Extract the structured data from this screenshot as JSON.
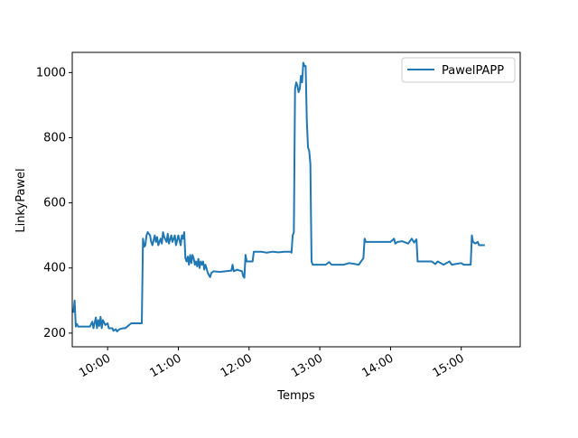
{
  "chart_data": {
    "type": "line",
    "xlabel": "Temps",
    "ylabel": "LinkyPawel",
    "xlim": [
      "09:30",
      "15:50"
    ],
    "ylim": [
      158,
      1062
    ],
    "x_ticks": [
      "10:00",
      "11:00",
      "12:00",
      "13:00",
      "14:00",
      "15:00"
    ],
    "y_ticks": [
      200,
      400,
      600,
      800,
      1000
    ],
    "legend_position": "upper right",
    "grid": false,
    "series": [
      {
        "name": "PawelPAPP",
        "color": "#1f77b4",
        "points": [
          [
            "09:30",
            270
          ],
          [
            "09:31",
            265
          ],
          [
            "09:32",
            300
          ],
          [
            "09:33",
            220
          ],
          [
            "09:34",
            228
          ],
          [
            "09:35",
            220
          ],
          [
            "09:40",
            220
          ],
          [
            "09:45",
            220
          ],
          [
            "09:47",
            235
          ],
          [
            "09:48",
            215
          ],
          [
            "09:50",
            248
          ],
          [
            "09:51",
            215
          ],
          [
            "09:52",
            240
          ],
          [
            "09:53",
            222
          ],
          [
            "09:54",
            250
          ],
          [
            "09:55",
            215
          ],
          [
            "09:56",
            240
          ],
          [
            "09:58",
            225
          ],
          [
            "10:00",
            230
          ],
          [
            "10:01",
            215
          ],
          [
            "10:04",
            215
          ],
          [
            "10:05",
            207
          ],
          [
            "10:07",
            212
          ],
          [
            "10:08",
            205
          ],
          [
            "10:10",
            212
          ],
          [
            "10:13",
            215
          ],
          [
            "10:15",
            215
          ],
          [
            "10:20",
            230
          ],
          [
            "10:25",
            230
          ],
          [
            "10:29",
            230
          ],
          [
            "10:30",
            490
          ],
          [
            "10:31",
            465
          ],
          [
            "10:32",
            470
          ],
          [
            "10:33",
            500
          ],
          [
            "10:34",
            510
          ],
          [
            "10:36",
            500
          ],
          [
            "10:37",
            480
          ],
          [
            "10:38",
            470
          ],
          [
            "10:40",
            500
          ],
          [
            "10:41",
            480
          ],
          [
            "10:42",
            495
          ],
          [
            "10:43",
            470
          ],
          [
            "10:45",
            490
          ],
          [
            "10:46",
            475
          ],
          [
            "10:47",
            510
          ],
          [
            "10:48",
            495
          ],
          [
            "10:50",
            480
          ],
          [
            "10:51",
            505
          ],
          [
            "10:52",
            475
          ],
          [
            "10:54",
            500
          ],
          [
            "10:55",
            480
          ],
          [
            "10:57",
            500
          ],
          [
            "10:58",
            470
          ],
          [
            "11:00",
            500
          ],
          [
            "11:02",
            470
          ],
          [
            "11:03",
            500
          ],
          [
            "11:04",
            490
          ],
          [
            "11:05",
            510
          ],
          [
            "11:06",
            430
          ],
          [
            "11:07",
            420
          ],
          [
            "11:08",
            435
          ],
          [
            "11:09",
            410
          ],
          [
            "11:10",
            440
          ],
          [
            "11:11",
            415
          ],
          [
            "11:12",
            440
          ],
          [
            "11:13",
            430
          ],
          [
            "11:14",
            410
          ],
          [
            "11:15",
            420
          ],
          [
            "11:16",
            405
          ],
          [
            "11:17",
            428
          ],
          [
            "11:18",
            400
          ],
          [
            "11:19",
            420
          ],
          [
            "11:20",
            410
          ],
          [
            "11:21",
            420
          ],
          [
            "11:22",
            395
          ],
          [
            "11:23",
            410
          ],
          [
            "11:25",
            385
          ],
          [
            "11:26",
            378
          ],
          [
            "11:27",
            372
          ],
          [
            "11:28",
            385
          ],
          [
            "11:30",
            390
          ],
          [
            "11:35",
            388
          ],
          [
            "11:40",
            390
          ],
          [
            "11:45",
            392
          ],
          [
            "11:46",
            410
          ],
          [
            "11:47",
            390
          ],
          [
            "11:50",
            395
          ],
          [
            "11:52",
            392
          ],
          [
            "11:54",
            390
          ],
          [
            "11:55",
            375
          ],
          [
            "11:56",
            370
          ],
          [
            "11:57",
            440
          ],
          [
            "11:58",
            420
          ],
          [
            "12:00",
            420
          ],
          [
            "12:03",
            420
          ],
          [
            "12:04",
            450
          ],
          [
            "12:10",
            450
          ],
          [
            "12:15",
            447
          ],
          [
            "12:20",
            450
          ],
          [
            "12:25",
            448
          ],
          [
            "12:30",
            450
          ],
          [
            "12:35",
            450
          ],
          [
            "12:36",
            447
          ],
          [
            "12:37",
            500
          ],
          [
            "12:38",
            510
          ],
          [
            "12:39",
            950
          ],
          [
            "12:40",
            970
          ],
          [
            "12:41",
            960
          ],
          [
            "12:42",
            940
          ],
          [
            "12:43",
            950
          ],
          [
            "12:44",
            990
          ],
          [
            "12:45",
            970
          ],
          [
            "12:46",
            1030
          ],
          [
            "12:47",
            1020
          ],
          [
            "12:48",
            1020
          ],
          [
            "12:49",
            850
          ],
          [
            "12:50",
            770
          ],
          [
            "12:51",
            760
          ],
          [
            "12:52",
            720
          ],
          [
            "12:53",
            420
          ],
          [
            "12:54",
            410
          ],
          [
            "13:00",
            410
          ],
          [
            "13:05",
            410
          ],
          [
            "13:08",
            418
          ],
          [
            "13:10",
            410
          ],
          [
            "13:20",
            410
          ],
          [
            "13:25",
            415
          ],
          [
            "13:30",
            412
          ],
          [
            "13:33",
            410
          ],
          [
            "13:35",
            420
          ],
          [
            "13:37",
            430
          ],
          [
            "13:38",
            490
          ],
          [
            "13:39",
            480
          ],
          [
            "13:50",
            480
          ],
          [
            "14:00",
            480
          ],
          [
            "14:03",
            490
          ],
          [
            "14:04",
            475
          ],
          [
            "14:06",
            480
          ],
          [
            "14:10",
            482
          ],
          [
            "14:15",
            475
          ],
          [
            "14:18",
            490
          ],
          [
            "14:20",
            478
          ],
          [
            "14:22",
            488
          ],
          [
            "14:23",
            420
          ],
          [
            "14:30",
            420
          ],
          [
            "14:35",
            420
          ],
          [
            "14:38",
            412
          ],
          [
            "14:40",
            420
          ],
          [
            "14:45",
            410
          ],
          [
            "14:50",
            420
          ],
          [
            "14:52",
            410
          ],
          [
            "14:55",
            412
          ],
          [
            "15:00",
            415
          ],
          [
            "15:02",
            410
          ],
          [
            "15:08",
            410
          ],
          [
            "15:09",
            500
          ],
          [
            "15:10",
            480
          ],
          [
            "15:12",
            475
          ],
          [
            "15:14",
            480
          ],
          [
            "15:15",
            470
          ],
          [
            "15:20",
            470
          ]
        ]
      }
    ]
  }
}
